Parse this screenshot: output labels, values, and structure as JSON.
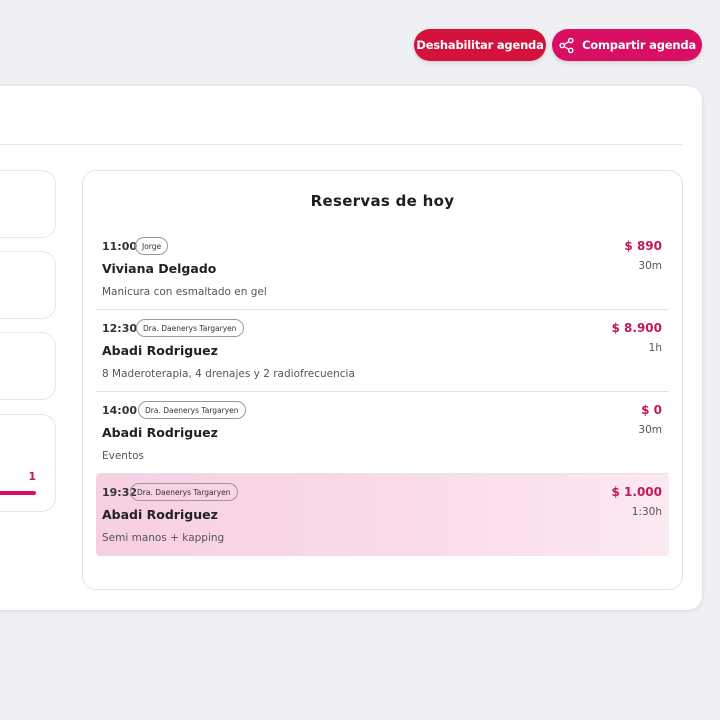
{
  "header": {
    "disable_label": "Deshabilitar agenda",
    "share_label": "Compartir agenda",
    "share_icon": "share-icon",
    "disable_color": "#d4123c",
    "share_color": "#d80f63"
  },
  "sidebar": {
    "progress_value": "1"
  },
  "reservations": {
    "title": "Reservas de hoy",
    "items": [
      {
        "time": "11:00",
        "staff": "Jorge",
        "client": "Viviana Delgado",
        "service": "Manicura con esmaltado en gel",
        "price": "$ 890",
        "duration": "30m",
        "highlighted": false
      },
      {
        "time": "12:30",
        "staff": "Dra. Daenerys Targaryen",
        "client": "Abadi Rodriguez",
        "service": "8 Maderoterapia, 4 drenajes y 2 radiofrecuencia",
        "price": "$ 8.900",
        "duration": "1h",
        "highlighted": false
      },
      {
        "time": "14:00",
        "staff": "Dra. Daenerys Targaryen",
        "client": "Abadi Rodriguez",
        "service": "Eventos",
        "price": "$ 0",
        "duration": "30m",
        "highlighted": false
      },
      {
        "time": "19:32",
        "staff": "Dra. Daenerys Targaryen",
        "client": "Abadi Rodriguez",
        "service": "Semi manos + kapping",
        "price": "$ 1.000",
        "duration": "1:30h",
        "highlighted": true
      }
    ],
    "accent_color": "#c2185b"
  }
}
